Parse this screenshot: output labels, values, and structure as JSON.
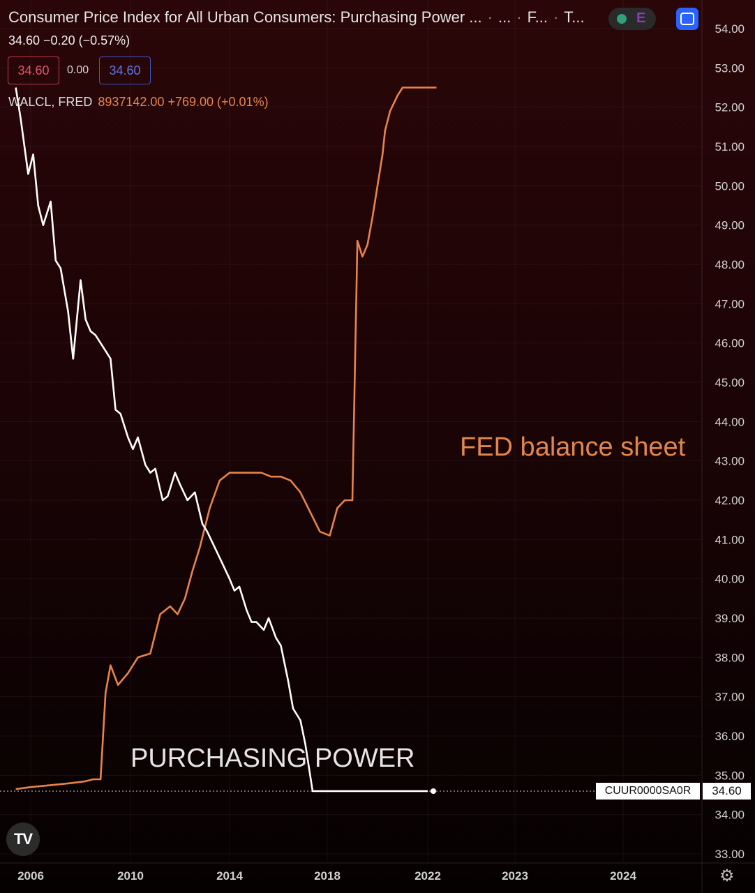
{
  "header": {
    "title_parts": [
      "Consumer Price Index for All Urban Consumers: Purchasing Power ...",
      "...",
      "F...",
      "T..."
    ],
    "quote": "34.60  −0.20 (−0.57%)",
    "bid": "34.60",
    "spread": "0.00",
    "ask": "34.60",
    "series2_name": "WALCL, FRED",
    "series2_values": "8937142.00  +769.00 (+0.01%)",
    "earnings_badge": "E"
  },
  "annotations": {
    "fed": "FED balance sheet",
    "purchasing_power": "PURCHASING POWER"
  },
  "price_labels": {
    "symbol": "CUUR0000SA0R",
    "last": "34.60"
  },
  "icons": {
    "logo": "TV",
    "settings": "⚙"
  },
  "colors": {
    "cpi_line": "#ffffff",
    "walcl_line": "#e8844a"
  },
  "chart_data": {
    "type": "line",
    "x_ticks": [
      "2006",
      "2010",
      "2014",
      "2018",
      "2022",
      "2023",
      "2024"
    ],
    "y_ticks": [
      "54.00",
      "53.00",
      "52.00",
      "51.00",
      "50.00",
      "49.00",
      "48.00",
      "47.00",
      "46.00",
      "45.00",
      "44.00",
      "43.00",
      "42.00",
      "41.00",
      "40.00",
      "39.00",
      "38.00",
      "37.00",
      "36.00",
      "35.00",
      "34.00",
      "33.00"
    ],
    "ylim": [
      33,
      54
    ],
    "series": [
      {
        "name": "CUUR0000SA0R",
        "x": [
          2005.4,
          2005.6,
          2005.9,
          2006.1,
          2006.3,
          2006.5,
          2006.8,
          2007.0,
          2007.2,
          2007.5,
          2007.7,
          2008.0,
          2008.2,
          2008.4,
          2008.6,
          2008.9,
          2009.0,
          2009.2,
          2009.4,
          2009.6,
          2009.9,
          2010.1,
          2010.3,
          2010.6,
          2010.8,
          2011.0,
          2011.3,
          2011.5,
          2011.8,
          2012.0,
          2012.3,
          2012.6,
          2012.9,
          2013.1,
          2013.4,
          2013.7,
          2014.0,
          2014.2,
          2014.4,
          2014.7,
          2014.9,
          2015.1,
          2015.4,
          2015.6,
          2015.9,
          2016.1,
          2016.4,
          2016.6,
          2016.9,
          2017.1,
          2017.4,
          2017.6,
          2017.9,
          2018.1,
          2018.3,
          2018.6,
          2018.9,
          2019.1,
          2019.3,
          2019.6,
          2019.8,
          2020.0,
          2020.3,
          2020.5,
          2020.8,
          2021.0,
          2021.2,
          2021.4,
          2021.7,
          2021.9,
          2022.0
        ],
        "values": [
          52.5,
          51.7,
          50.3,
          50.8,
          49.5,
          49.0,
          49.6,
          48.1,
          47.9,
          46.8,
          45.6,
          47.6,
          46.6,
          46.3,
          46.2,
          45.9,
          45.8,
          45.6,
          44.3,
          44.2,
          43.6,
          43.3,
          43.6,
          42.9,
          42.7,
          42.8,
          42.0,
          42.1,
          42.7,
          42.4,
          42.0,
          42.2,
          41.4,
          41.2,
          40.8,
          40.4,
          40.0,
          39.7,
          39.8,
          39.2,
          38.9,
          38.9,
          38.7,
          39.0,
          38.5,
          38.3,
          37.4,
          36.7,
          36.4,
          35.8,
          34.6,
          34.6,
          34.6,
          34.6,
          34.6,
          34.6,
          34.6,
          34.6,
          34.6,
          34.6,
          34.6,
          34.6,
          34.6,
          34.6,
          34.6,
          34.6,
          34.6,
          34.6,
          34.6,
          34.6,
          34.6
        ]
      },
      {
        "name": "WALCL",
        "x": [
          2005.4,
          2006.0,
          2006.8,
          2007.6,
          2008.2,
          2008.5,
          2008.8,
          2009.0,
          2009.2,
          2009.5,
          2009.9,
          2010.3,
          2010.8,
          2011.2,
          2011.6,
          2011.9,
          2012.2,
          2012.5,
          2012.8,
          2013.2,
          2013.6,
          2014.0,
          2014.3,
          2014.6,
          2014.9,
          2015.3,
          2015.7,
          2016.1,
          2016.5,
          2016.9,
          2017.3,
          2017.7,
          2018.1,
          2018.4,
          2018.7,
          2019.0,
          2019.2,
          2019.4,
          2019.6,
          2019.8,
          2020.0,
          2020.2,
          2020.3,
          2020.5,
          2020.8,
          2021.0,
          2021.3,
          2021.6,
          2021.9,
          2022.1
        ],
        "values": [
          34.65,
          34.7,
          34.75,
          34.8,
          34.85,
          34.9,
          34.9,
          37.1,
          37.8,
          37.3,
          37.6,
          38.0,
          38.1,
          39.1,
          39.3,
          39.1,
          39.5,
          40.2,
          40.8,
          41.8,
          42.5,
          42.7,
          42.7,
          42.7,
          42.7,
          42.7,
          42.6,
          42.6,
          42.5,
          42.2,
          41.7,
          41.2,
          41.1,
          41.8,
          42.0,
          42.0,
          48.6,
          48.2,
          48.5,
          49.2,
          50.0,
          50.8,
          51.4,
          51.9,
          52.3,
          52.5,
          52.5,
          52.5,
          52.5,
          52.5
        ]
      }
    ]
  }
}
